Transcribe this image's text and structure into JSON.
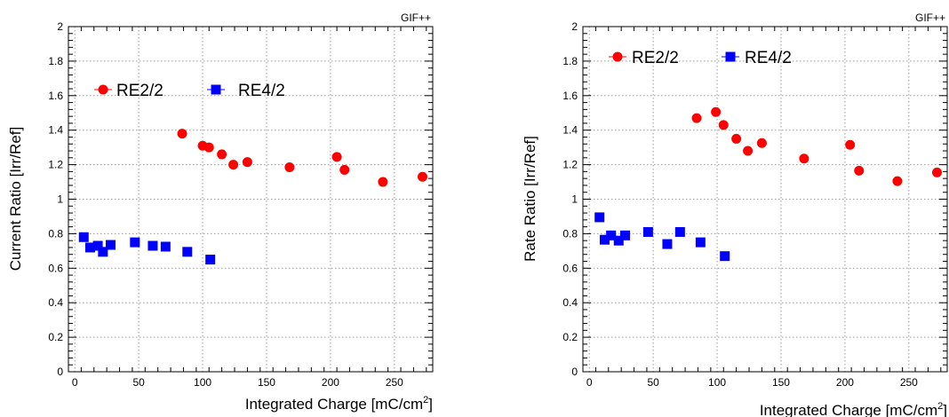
{
  "chart_data": [
    {
      "type": "scatter",
      "tag": "GIF++",
      "xlabel": "Integrated Charge [mC/cm",
      "xlabel_sup": "2",
      "xlabel_end": "]",
      "ylabel": "Current Ratio [Irr/Ref]",
      "xlim": [
        -5,
        280
      ],
      "ylim": [
        0,
        2
      ],
      "x_ticks": [
        "0",
        "50",
        "100",
        "150",
        "200",
        "250"
      ],
      "y_ticks": [
        "0",
        "0.2",
        "0.4",
        "0.6",
        "0.8",
        "1",
        "1.2",
        "1.4",
        "1.6",
        "1.8",
        "2"
      ],
      "grid": true,
      "legend_position": "upper-left",
      "series": [
        {
          "name": "RE2/2",
          "color": "#ff0000",
          "marker": "circle",
          "x": [
            84,
            100,
            105,
            115,
            124,
            135,
            168,
            205,
            211,
            241,
            272
          ],
          "y": [
            1.38,
            1.31,
            1.3,
            1.26,
            1.2,
            1.215,
            1.185,
            1.245,
            1.17,
            1.1,
            1.13
          ]
        },
        {
          "name": "RE4/2",
          "color": "#0000ff",
          "marker": "square",
          "x": [
            7,
            12,
            18,
            22,
            28,
            47,
            61,
            71,
            88,
            106
          ],
          "y": [
            0.78,
            0.72,
            0.73,
            0.695,
            0.735,
            0.75,
            0.73,
            0.725,
            0.695,
            0.65
          ]
        }
      ]
    },
    {
      "type": "scatter",
      "tag": "GIF++",
      "xlabel": "Integrated Charge [mC/cm",
      "xlabel_sup": "2",
      "xlabel_end": "]",
      "ylabel": "Rate Ratio [Irr/Ref]",
      "xlim": [
        -5,
        280
      ],
      "ylim": [
        0,
        2
      ],
      "x_ticks": [
        "0",
        "50",
        "100",
        "150",
        "200",
        "250"
      ],
      "y_ticks": [
        "0",
        "0.2",
        "0.4",
        "0.6",
        "0.8",
        "1",
        "1.2",
        "1.4",
        "1.6",
        "1.8",
        "2"
      ],
      "grid": true,
      "legend_position": "upper-left",
      "series": [
        {
          "name": "RE2/2",
          "color": "#ff0000",
          "marker": "circle",
          "x": [
            84,
            99,
            105,
            115,
            124,
            135,
            168,
            204,
            211,
            241,
            272
          ],
          "y": [
            1.47,
            1.505,
            1.43,
            1.35,
            1.28,
            1.325,
            1.235,
            1.315,
            1.165,
            1.105,
            1.155
          ]
        },
        {
          "name": "RE4/2",
          "color": "#0000ff",
          "marker": "square",
          "x": [
            8,
            12,
            17,
            23,
            28,
            46,
            61,
            71,
            87,
            106
          ],
          "y": [
            0.895,
            0.765,
            0.79,
            0.76,
            0.79,
            0.81,
            0.74,
            0.81,
            0.75,
            0.67
          ]
        }
      ]
    }
  ]
}
